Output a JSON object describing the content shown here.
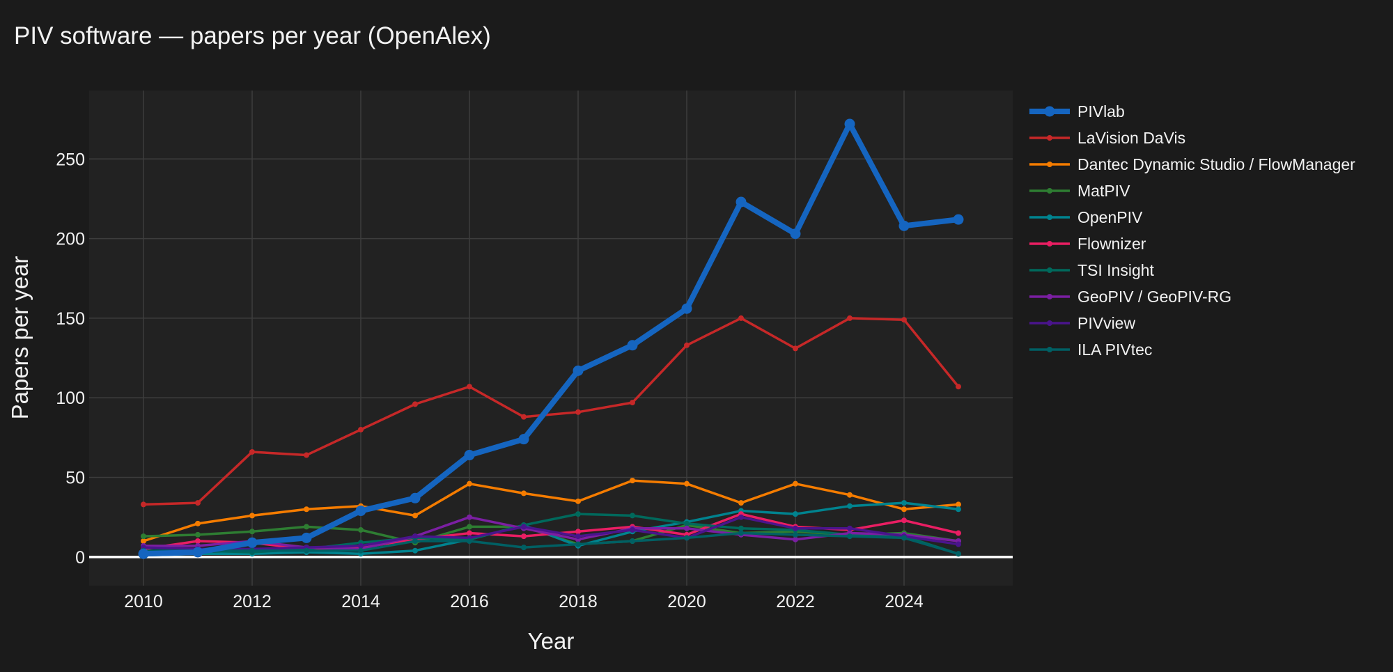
{
  "chart_data": {
    "type": "line",
    "title": "PIV software — papers per year (OpenAlex)",
    "xlabel": "Year",
    "ylabel": "Papers per year",
    "xlim": [
      2009,
      2026
    ],
    "ylim": [
      -18,
      293
    ],
    "x_ticks": [
      2010,
      2012,
      2014,
      2016,
      2018,
      2020,
      2022,
      2024
    ],
    "y_ticks": [
      0,
      50,
      100,
      150,
      200,
      250
    ],
    "grid": true,
    "legend_position": "right",
    "x": [
      2010,
      2011,
      2012,
      2013,
      2014,
      2015,
      2016,
      2017,
      2018,
      2019,
      2020,
      2021,
      2022,
      2023,
      2024,
      2025
    ],
    "series": [
      {
        "name": "PIVlab",
        "color": "#1565c0",
        "emphasis": true,
        "values": [
          2,
          3,
          9,
          12,
          29,
          37,
          64,
          74,
          117,
          133,
          156,
          223,
          203,
          272,
          208,
          212
        ]
      },
      {
        "name": "LaVision DaVis",
        "color": "#c62828",
        "values": [
          33,
          34,
          66,
          64,
          80,
          96,
          107,
          88,
          91,
          97,
          133,
          150,
          131,
          150,
          149,
          107
        ]
      },
      {
        "name": "Dantec Dynamic Studio / FlowManager",
        "color": "#f57c00",
        "values": [
          10,
          21,
          26,
          30,
          32,
          26,
          46,
          40,
          35,
          48,
          46,
          34,
          46,
          39,
          30,
          33
        ]
      },
      {
        "name": "MatPIV",
        "color": "#2e7d32",
        "values": [
          13,
          14,
          16,
          19,
          17,
          9,
          19,
          19,
          8,
          10,
          20,
          15,
          16,
          14,
          15,
          10
        ]
      },
      {
        "name": "OpenPIV",
        "color": "#00838f",
        "values": [
          1,
          2,
          2,
          3,
          2,
          4,
          11,
          20,
          7,
          16,
          22,
          29,
          27,
          32,
          34,
          30
        ]
      },
      {
        "name": "Flownizer",
        "color": "#e91e63",
        "values": [
          5,
          10,
          9,
          5,
          6,
          11,
          15,
          13,
          16,
          19,
          14,
          27,
          19,
          17,
          23,
          15
        ]
      },
      {
        "name": "TSI Insight",
        "color": "#00695c",
        "values": [
          3,
          4,
          3,
          5,
          9,
          12,
          11,
          20,
          27,
          26,
          21,
          18,
          17,
          14,
          13,
          2
        ]
      },
      {
        "name": "GeoPIV / GeoPIV-RG",
        "color": "#7b1fa2",
        "values": [
          7,
          7,
          10,
          6,
          5,
          13,
          25,
          18,
          11,
          18,
          18,
          14,
          11,
          15,
          14,
          10
        ]
      },
      {
        "name": "PIVview",
        "color": "#4a148c",
        "values": [
          6,
          5,
          5,
          6,
          7,
          13,
          12,
          19,
          13,
          17,
          12,
          25,
          18,
          18,
          13,
          8
        ]
      },
      {
        "name": "ILA PIVtec",
        "color": "#006064",
        "values": [
          4,
          4,
          4,
          4,
          4,
          10,
          10,
          6,
          8,
          10,
          12,
          15,
          14,
          13,
          12,
          2
        ]
      }
    ]
  }
}
